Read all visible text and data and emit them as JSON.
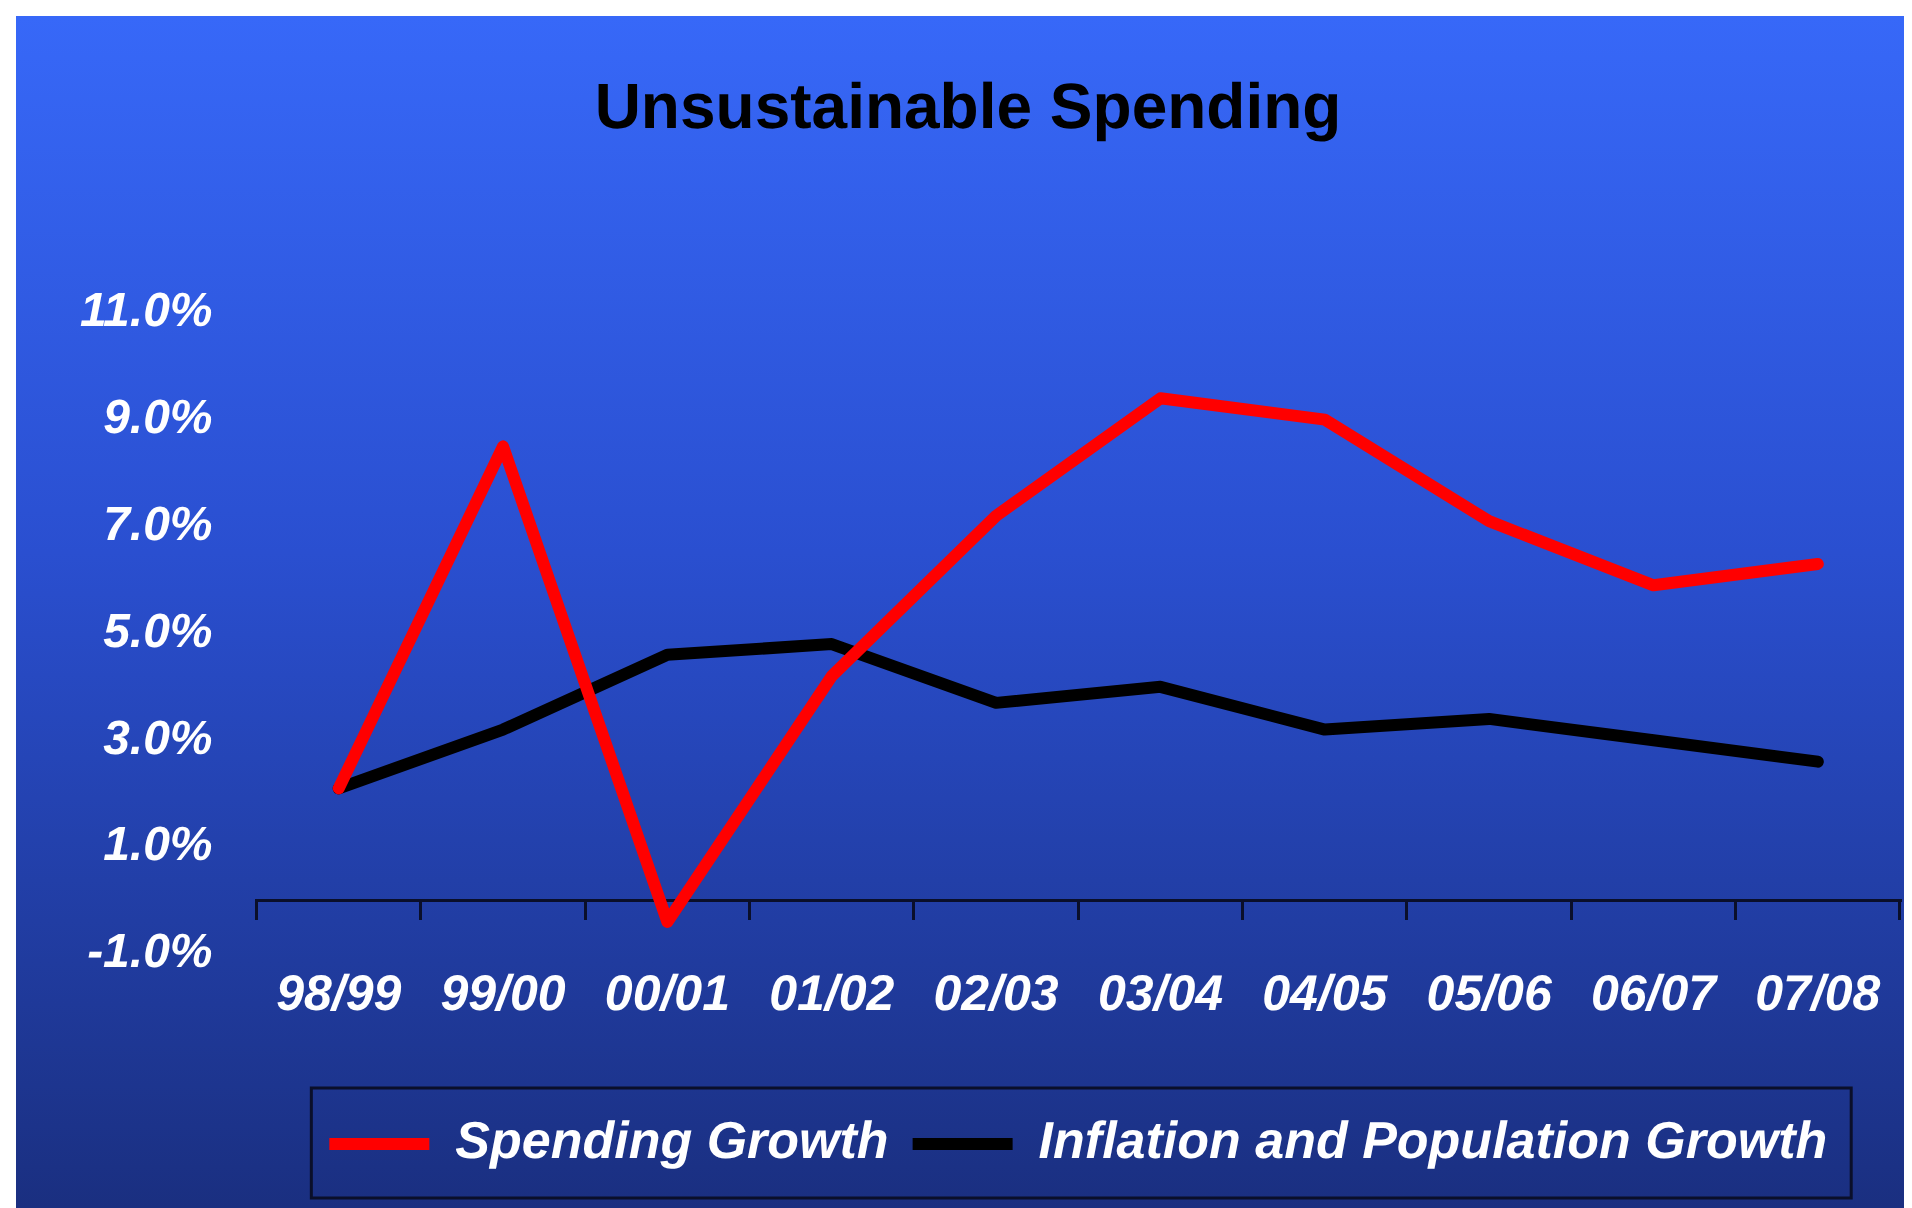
{
  "chart_data": {
    "type": "line",
    "title": "Unsustainable Spending",
    "categories": [
      "98/99",
      "99/00",
      "00/01",
      "01/02",
      "02/03",
      "03/04",
      "04/05",
      "05/06",
      "06/07",
      "07/08"
    ],
    "series": [
      {
        "name": "Spending Growth",
        "color": "#ff0000",
        "values": [
          2.1,
          8.5,
          -0.4,
          4.2,
          7.2,
          9.4,
          9.0,
          7.1,
          5.9,
          6.3
        ]
      },
      {
        "name": "Inflation and Population Growth",
        "color": "#000000",
        "values": [
          2.1,
          3.2,
          4.6,
          4.8,
          3.7,
          4.0,
          3.2,
          3.4,
          3.0,
          2.6
        ]
      }
    ],
    "ylim": [
      -1,
      11
    ],
    "yticks": [
      {
        "value": -1,
        "label": "-1.0%"
      },
      {
        "value": 1,
        "label": "1.0%"
      },
      {
        "value": 3,
        "label": "3.0%"
      },
      {
        "value": 5,
        "label": "5.0%"
      },
      {
        "value": 7,
        "label": "7.0%"
      },
      {
        "value": 9,
        "label": "9.0%"
      },
      {
        "value": 11,
        "label": "11.0%"
      }
    ],
    "legend": "bottom"
  }
}
